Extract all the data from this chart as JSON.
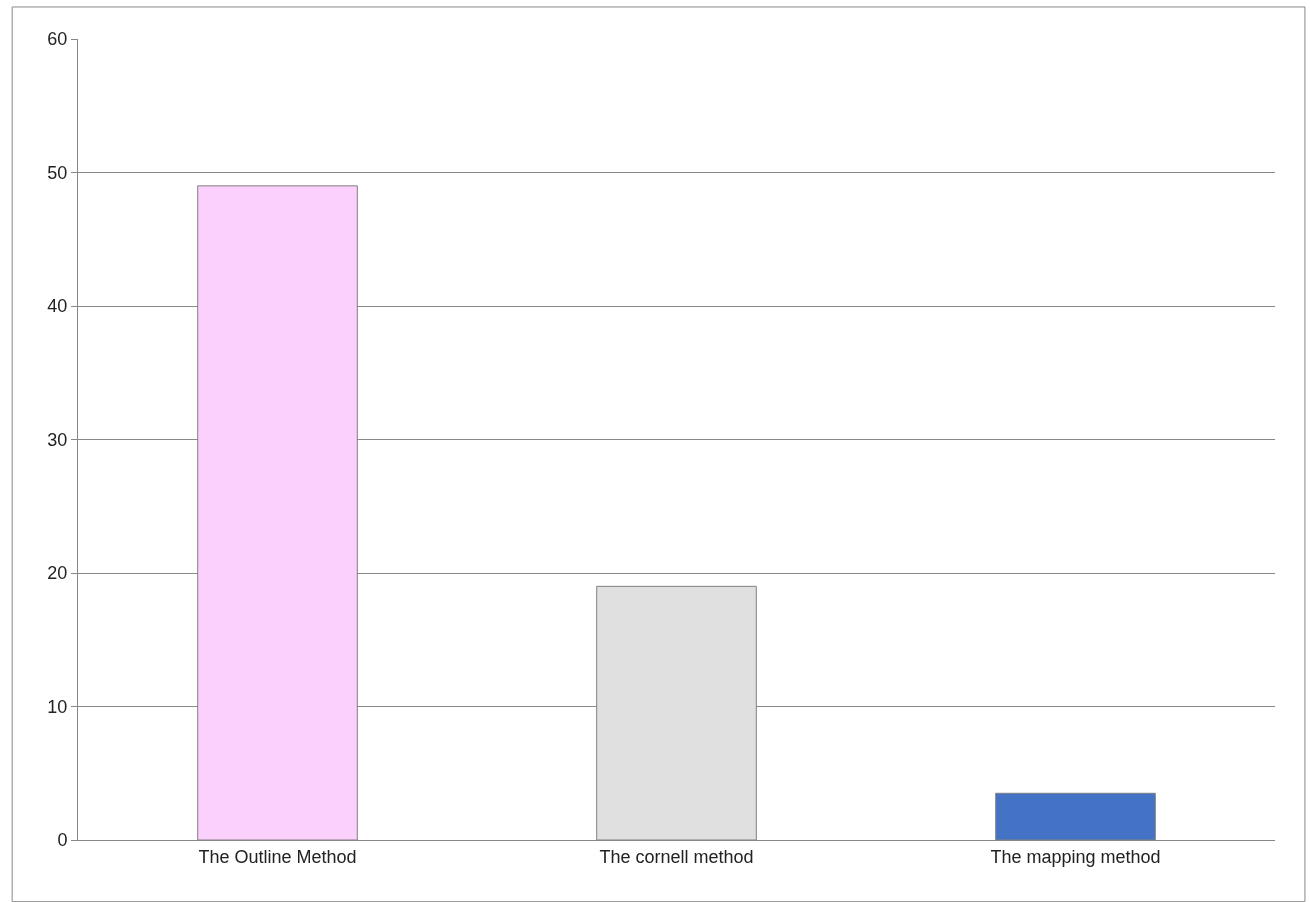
{
  "chart_data": {
    "type": "bar",
    "categories": [
      "The Outline Method",
      "The cornell method",
      "The mapping method"
    ],
    "values": [
      49,
      19,
      3.5
    ],
    "colors": [
      "#fcd0fc",
      "#e0e0e0",
      "#4472c4"
    ],
    "ylim": [
      0,
      60
    ],
    "yticks": [
      0,
      10,
      20,
      30,
      40,
      50,
      60
    ],
    "grid": "y"
  }
}
